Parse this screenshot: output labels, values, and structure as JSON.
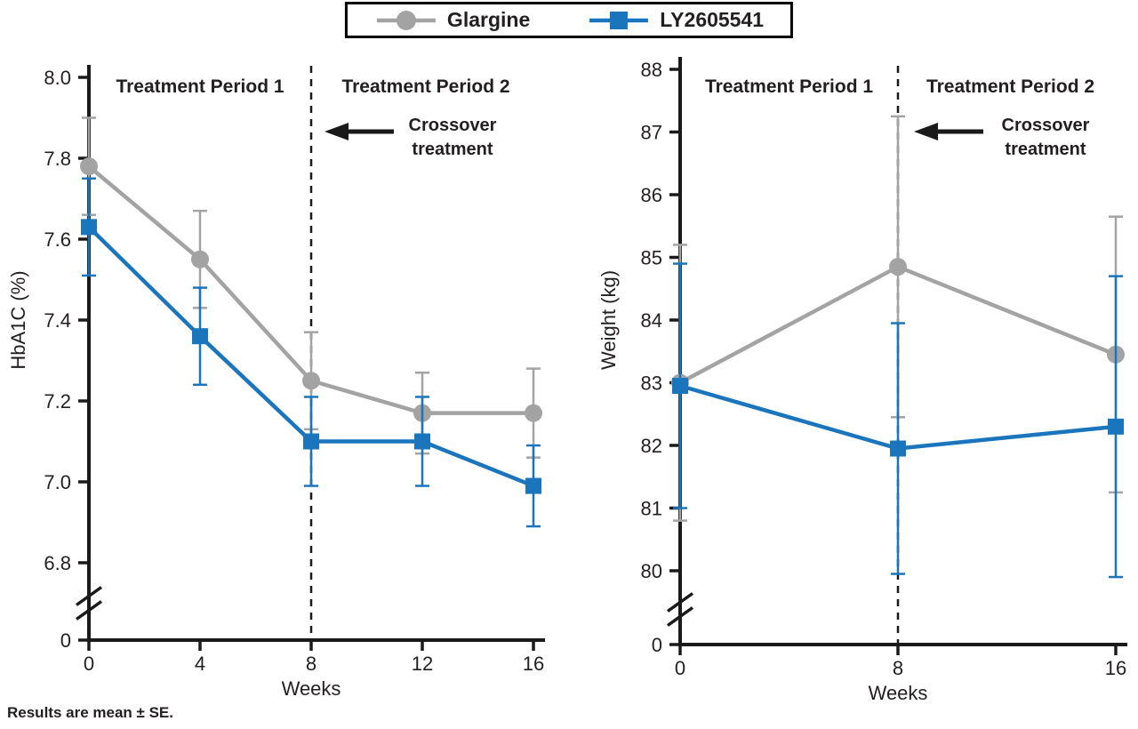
{
  "legend": {
    "border_color": "#000000",
    "items": [
      {
        "label": "Glargine",
        "marker": "circle",
        "color": "#a3a3a3"
      },
      {
        "label": "LY2605541",
        "marker": "square",
        "color": "#1b75bc"
      }
    ]
  },
  "caption": "Results are mean ± SE.",
  "chart_data": [
    {
      "type": "line",
      "panel": "left",
      "title": "",
      "xlabel": "Weeks",
      "ylabel": "HbA1C (%)",
      "xlim": [
        0,
        16
      ],
      "ylim": [
        6.8,
        8.0
      ],
      "x_ticks": [
        0,
        4,
        8,
        12,
        16
      ],
      "x_tick_labels": [
        "0",
        "4",
        "8",
        "12",
        "16"
      ],
      "y_ticks": [
        6.8,
        7.0,
        7.2,
        7.4,
        7.6,
        7.8,
        8.0
      ],
      "y_tick_labels": [
        "6.8",
        "7.0",
        "7.2",
        "7.4",
        "7.6",
        "7.8",
        "8.0"
      ],
      "axis_break": true,
      "zero_label": "0",
      "grid": false,
      "crossover_week": 8,
      "annotations": {
        "period1": "Treatment Period 1",
        "period2": "Treatment Period 2",
        "crossover_lines": [
          "Crossover",
          "treatment"
        ]
      },
      "series": [
        {
          "name": "Glargine",
          "marker": "circle",
          "color": "#a3a3a3",
          "x": [
            0,
            4,
            8,
            12,
            16
          ],
          "y": [
            7.78,
            7.55,
            7.25,
            7.17,
            7.17
          ],
          "se": [
            0.12,
            0.12,
            0.12,
            0.1,
            0.11
          ]
        },
        {
          "name": "LY2605541",
          "marker": "square",
          "color": "#1b75bc",
          "x": [
            0,
            4,
            8,
            12,
            16
          ],
          "y": [
            7.63,
            7.36,
            7.1,
            7.1,
            6.99
          ],
          "se": [
            0.12,
            0.12,
            0.11,
            0.11,
            0.1
          ]
        }
      ]
    },
    {
      "type": "line",
      "panel": "right",
      "title": "",
      "xlabel": "Weeks",
      "ylabel": "Weight (kg)",
      "xlim": [
        0,
        16
      ],
      "ylim": [
        80,
        88
      ],
      "x_ticks": [
        0,
        8,
        16
      ],
      "x_tick_labels": [
        "0",
        "8",
        "16"
      ],
      "y_ticks": [
        80,
        81,
        82,
        83,
        84,
        85,
        86,
        87,
        88
      ],
      "y_tick_labels": [
        "80",
        "81",
        "82",
        "83",
        "84",
        "85",
        "86",
        "87",
        "88"
      ],
      "axis_break": true,
      "zero_label": "0",
      "grid": false,
      "crossover_week": 8,
      "annotations": {
        "period1": "Treatment Period 1",
        "period2": "Treatment Period 2",
        "crossover_lines": [
          "Crossover",
          "treatment"
        ]
      },
      "series": [
        {
          "name": "Glargine",
          "marker": "circle",
          "color": "#a3a3a3",
          "x": [
            0,
            8,
            16
          ],
          "y": [
            83.0,
            84.85,
            83.45
          ],
          "se": [
            2.2,
            2.4,
            2.2
          ]
        },
        {
          "name": "LY2605541",
          "marker": "square",
          "color": "#1b75bc",
          "x": [
            0,
            8,
            16
          ],
          "y": [
            82.95,
            81.95,
            82.3
          ],
          "se": [
            1.95,
            2.0,
            2.4
          ]
        }
      ]
    }
  ]
}
